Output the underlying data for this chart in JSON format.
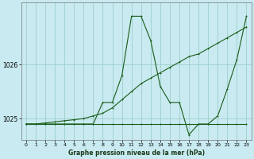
{
  "title": "Graphe pression niveau de la mer (hPa)",
  "bg_color": "#c8eaf0",
  "grid_color": "#9dcfca",
  "line_color": "#1a5c1a",
  "xlim": [
    -0.5,
    23.5
  ],
  "ylim": [
    1024.6,
    1027.15
  ],
  "yticks": [
    1025,
    1026
  ],
  "xticks": [
    0,
    1,
    2,
    3,
    4,
    5,
    6,
    7,
    8,
    9,
    10,
    11,
    12,
    13,
    14,
    15,
    16,
    17,
    18,
    19,
    20,
    21,
    22,
    23
  ],
  "series1_x": [
    0,
    1,
    2,
    3,
    4,
    5,
    6,
    7,
    8,
    9,
    10,
    11,
    12,
    13,
    14,
    15,
    16,
    17,
    18,
    19,
    20,
    21,
    22,
    23
  ],
  "series1_y": [
    1024.9,
    1024.9,
    1024.9,
    1024.9,
    1024.9,
    1024.9,
    1024.9,
    1024.9,
    1024.9,
    1024.9,
    1024.9,
    1024.9,
    1024.9,
    1024.9,
    1024.9,
    1024.9,
    1024.9,
    1024.9,
    1024.9,
    1024.9,
    1024.9,
    1024.9,
    1024.9,
    1024.9
  ],
  "series2_x": [
    0,
    1,
    2,
    3,
    4,
    5,
    6,
    7,
    8,
    9,
    10,
    11,
    12,
    13,
    14,
    15,
    16,
    17,
    18,
    19,
    20,
    21,
    22,
    23
  ],
  "series2_y": [
    1024.9,
    1024.9,
    1024.92,
    1024.94,
    1024.96,
    1024.98,
    1025.0,
    1025.05,
    1025.1,
    1025.2,
    1025.35,
    1025.5,
    1025.65,
    1025.75,
    1025.85,
    1025.95,
    1026.05,
    1026.15,
    1026.2,
    1026.3,
    1026.4,
    1026.5,
    1026.6,
    1026.7
  ],
  "series3_x": [
    0,
    1,
    2,
    3,
    4,
    5,
    6,
    7,
    8,
    9,
    10,
    11,
    12,
    13,
    14,
    15,
    16,
    17,
    18,
    19,
    20,
    21,
    22,
    23
  ],
  "series3_y": [
    1024.9,
    1024.9,
    1024.9,
    1024.9,
    1024.9,
    1024.9,
    1024.9,
    1024.9,
    1025.3,
    1025.3,
    1025.8,
    1026.9,
    1026.9,
    1026.45,
    1025.6,
    1025.3,
    1025.3,
    1024.7,
    1024.9,
    1024.9,
    1025.05,
    1025.55,
    1026.1,
    1026.9
  ],
  "ylabel_fontsize": 5.5,
  "tick_fontsize": 4.5,
  "lw": 0.8,
  "ms": 2.0
}
